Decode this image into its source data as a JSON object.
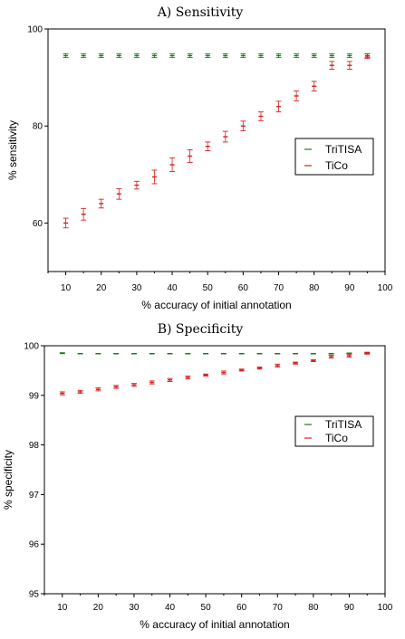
{
  "chart_data": [
    {
      "type": "scatter",
      "title": "A)  Sensitivity",
      "xlabel": "% accuracy of initial annotation",
      "ylabel": "% sensitivity",
      "xlim": [
        5,
        100
      ],
      "ylim": [
        50,
        100
      ],
      "xticks": [
        10,
        20,
        30,
        40,
        50,
        60,
        70,
        80,
        90,
        100
      ],
      "yticks": [
        60,
        80,
        100
      ],
      "grid": false,
      "legend": "right-middle",
      "x": [
        10,
        15,
        20,
        25,
        30,
        35,
        40,
        45,
        50,
        55,
        60,
        65,
        70,
        75,
        80,
        85,
        90,
        95
      ],
      "series": [
        {
          "name": "TriTISA",
          "color": "#1e7a1e",
          "values": [
            94.5,
            94.5,
            94.5,
            94.5,
            94.5,
            94.5,
            94.5,
            94.5,
            94.5,
            94.5,
            94.5,
            94.5,
            94.5,
            94.5,
            94.5,
            94.5,
            94.5,
            94.5
          ],
          "err": [
            0.4,
            0.4,
            0.4,
            0.4,
            0.4,
            0.4,
            0.4,
            0.4,
            0.4,
            0.4,
            0.4,
            0.4,
            0.4,
            0.4,
            0.4,
            0.4,
            0.4,
            0.4
          ]
        },
        {
          "name": "TiCo",
          "color": "#d42020",
          "values": [
            60.0,
            61.8,
            64.0,
            66.0,
            67.8,
            69.5,
            72.0,
            73.8,
            75.8,
            77.8,
            80.0,
            82.0,
            84.0,
            86.2,
            88.2,
            92.5,
            92.5,
            94.4
          ],
          "err": [
            1.0,
            1.2,
            0.9,
            1.1,
            0.8,
            1.4,
            1.4,
            1.3,
            0.9,
            1.1,
            1.0,
            0.9,
            1.1,
            1.0,
            1.0,
            0.8,
            0.8,
            0.5
          ]
        }
      ]
    },
    {
      "type": "scatter",
      "title": "B)  Specificity",
      "xlabel": "% accuracy of initial annotation",
      "ylabel": "% specificity",
      "xlim": [
        5,
        100
      ],
      "ylim": [
        95,
        100
      ],
      "xticks": [
        10,
        20,
        30,
        40,
        50,
        60,
        70,
        80,
        90,
        100
      ],
      "yticks": [
        95,
        96,
        97,
        98,
        99,
        100
      ],
      "grid": false,
      "legend": "right-middle",
      "x": [
        10,
        15,
        20,
        25,
        30,
        35,
        40,
        45,
        50,
        55,
        60,
        65,
        70,
        75,
        80,
        85,
        90,
        95
      ],
      "series": [
        {
          "name": "TriTISA",
          "color": "#1e7a1e",
          "values": [
            99.85,
            99.84,
            99.84,
            99.84,
            99.84,
            99.84,
            99.84,
            99.84,
            99.84,
            99.84,
            99.84,
            99.84,
            99.84,
            99.84,
            99.84,
            99.84,
            99.85,
            99.85
          ],
          "err": [
            0.01,
            0.005,
            0.005,
            0.005,
            0.005,
            0.005,
            0.005,
            0.005,
            0.005,
            0.005,
            0.005,
            0.005,
            0.005,
            0.005,
            0.005,
            0.005,
            0.005,
            0.005
          ]
        },
        {
          "name": "TiCo",
          "color": "#d42020",
          "values": [
            99.04,
            99.07,
            99.12,
            99.17,
            99.21,
            99.26,
            99.31,
            99.36,
            99.41,
            99.46,
            99.51,
            99.55,
            99.6,
            99.65,
            99.7,
            99.78,
            99.8,
            99.85
          ],
          "err": [
            0.03,
            0.03,
            0.03,
            0.03,
            0.03,
            0.03,
            0.03,
            0.03,
            0.02,
            0.03,
            0.02,
            0.02,
            0.03,
            0.02,
            0.02,
            0.03,
            0.03,
            0.02
          ]
        }
      ]
    }
  ]
}
